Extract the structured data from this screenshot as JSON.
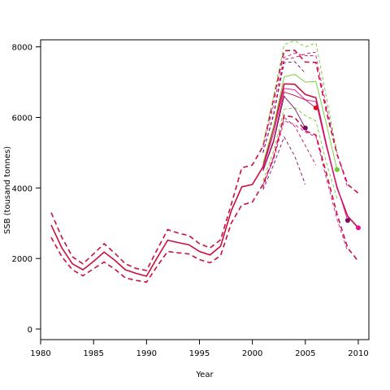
{
  "chart_data": {
    "type": "line",
    "title": "",
    "xlabel": "Year",
    "ylabel": "SSB (tousand tonnes)",
    "xlim": [
      1980,
      2011
    ],
    "ylim": [
      -300,
      8200
    ],
    "x_ticks": [
      1980,
      1985,
      1990,
      1995,
      2000,
      2005,
      2010
    ],
    "y_ticks": [
      0,
      2000,
      4000,
      6000,
      8000
    ],
    "x_tick_labels": [
      "1980",
      "1985",
      "1990",
      "1995",
      "2000",
      "2005",
      "2010"
    ],
    "y_tick_labels": [
      "0",
      "2000",
      "4000",
      "6000",
      "8000"
    ],
    "grid": false,
    "colors": {
      "main": "#c8103f",
      "magenta": "#e0119a",
      "purple": "#7a0a6a",
      "green": "#6ccc2e"
    },
    "series": [
      {
        "style": "solid",
        "color": "#c8103f",
        "x": [
          1981,
          1982,
          1983,
          1984,
          1985,
          1986,
          1987,
          1988,
          1989,
          1990,
          1991,
          1992,
          1993,
          1994,
          1995,
          1996,
          1997,
          1998,
          1999,
          2000,
          2001,
          2002,
          2003,
          2004,
          2005,
          2006,
          2007,
          2008,
          2009,
          2010
        ],
        "values": [
          2950,
          2300,
          1850,
          1680,
          1920,
          2180,
          1950,
          1680,
          1580,
          1500,
          2020,
          2520,
          2450,
          2390,
          2200,
          2100,
          2350,
          3350,
          4030,
          4100,
          4600,
          5700,
          6950,
          6940,
          6650,
          6560,
          5200,
          4000,
          3200,
          2870
        ]
      },
      {
        "style": "dashed",
        "color": "#c8103f",
        "x": [
          1981,
          1982,
          1983,
          1984,
          1985,
          1986,
          1987,
          1988,
          1989,
          1990,
          1991,
          1992,
          1993,
          1994,
          1995,
          1996,
          1997,
          1998,
          1999,
          2000,
          2001,
          2002,
          2003,
          2004,
          2005,
          2006,
          2007,
          2008,
          2009,
          2010
        ],
        "values": [
          3300,
          2600,
          2050,
          1850,
          2130,
          2420,
          2150,
          1850,
          1720,
          1660,
          2250,
          2820,
          2720,
          2650,
          2420,
          2300,
          2530,
          3530,
          4570,
          4650,
          5180,
          6530,
          7890,
          7900,
          7570,
          7560,
          6150,
          4950,
          4100,
          3850
        ]
      },
      {
        "style": "dashed",
        "color": "#c8103f",
        "x": [
          1981,
          1982,
          1983,
          1984,
          1985,
          1986,
          1987,
          1988,
          1989,
          1990,
          1991,
          1992,
          1993,
          1994,
          1995,
          1996,
          1997,
          1998,
          1999,
          2000,
          2001,
          2002,
          2003,
          2004,
          2005,
          2006,
          2007,
          2008,
          2009,
          2010
        ],
        "values": [
          2600,
          2050,
          1680,
          1510,
          1710,
          1900,
          1700,
          1450,
          1380,
          1330,
          1780,
          2200,
          2160,
          2130,
          1970,
          1880,
          2080,
          3000,
          3520,
          3600,
          4100,
          4850,
          6060,
          6000,
          5620,
          5500,
          4400,
          3250,
          2300,
          1920
        ]
      },
      {
        "style": "solid",
        "color": "#e0119a",
        "x": [
          2001,
          2002,
          2003,
          2004,
          2005,
          2006,
          2007,
          2008,
          2009
        ],
        "values": [
          4550,
          5550,
          6820,
          6780,
          6500,
          6450,
          5150,
          4050,
          3080
        ]
      },
      {
        "style": "dashed",
        "color": "#e0119a",
        "x": [
          2001,
          2002,
          2003,
          2004,
          2005,
          2006,
          2007,
          2008,
          2009
        ],
        "values": [
          5150,
          6350,
          7700,
          7820,
          7750,
          7750,
          6300,
          5000,
          4000
        ]
      },
      {
        "style": "dashed",
        "color": "#e0119a",
        "x": [
          2001,
          2002,
          2003,
          2004,
          2005,
          2006,
          2007,
          2008,
          2009
        ],
        "values": [
          4100,
          4800,
          5900,
          5800,
          5580,
          5450,
          4250,
          3100,
          2200
        ]
      },
      {
        "style": "solid",
        "color": "#6ccc2e",
        "x": [
          2001,
          2002,
          2003,
          2004,
          2005,
          2006,
          2007,
          2008
        ],
        "values": [
          4700,
          5750,
          7150,
          7220,
          7000,
          7020,
          5800,
          4520
        ]
      },
      {
        "style": "dashed",
        "color": "#6ccc2e",
        "x": [
          2001,
          2002,
          2003,
          2004,
          2005,
          2006,
          2007,
          2008
        ],
        "values": [
          5250,
          6600,
          8060,
          8180,
          8000,
          8110,
          6550,
          5000
        ]
      },
      {
        "style": "dashed",
        "color": "#6ccc2e",
        "x": [
          2001,
          2002,
          2003,
          2004,
          2005,
          2006,
          2007,
          2008
        ],
        "values": [
          4200,
          5050,
          6230,
          6280,
          6050,
          5900,
          4700,
          3700
        ]
      },
      {
        "style": "solid",
        "color": "#c8103f",
        "x": [
          2001,
          2002,
          2003,
          2004,
          2005,
          2006
        ],
        "values": [
          4500,
          5350,
          6720,
          6620,
          6500,
          6270
        ]
      },
      {
        "style": "dashed",
        "color": "#c8103f",
        "x": [
          2001,
          2002,
          2003,
          2004,
          2005,
          2006
        ],
        "values": [
          5000,
          6100,
          7640,
          7700,
          7800,
          7850
        ]
      },
      {
        "style": "dashed",
        "color": "#c8103f",
        "x": [
          2001,
          2002,
          2003,
          2004,
          2005,
          2006
        ],
        "values": [
          4000,
          4900,
          6000,
          5750,
          5200,
          4650
        ]
      },
      {
        "style": "solid",
        "color": "#7a0a6a",
        "x": [
          2001,
          2002,
          2003,
          2004,
          2005
        ],
        "values": [
          4480,
          5300,
          6600,
          6250,
          5700
        ]
      },
      {
        "style": "dashed",
        "color": "#7a0a6a",
        "x": [
          2001,
          2002,
          2003,
          2004,
          2005
        ],
        "values": [
          5000,
          6050,
          7550,
          7580,
          7250
        ]
      },
      {
        "style": "dashed",
        "color": "#7a0a6a",
        "x": [
          2001,
          2002,
          2003,
          2004,
          2005
        ],
        "values": [
          3950,
          4650,
          5450,
          4900,
          4100
        ]
      }
    ],
    "points": [
      {
        "x": 2005,
        "y": 5700,
        "color": "#7a0a6a"
      },
      {
        "x": 2006,
        "y": 6270,
        "color": "#e0111e"
      },
      {
        "x": 2008,
        "y": 4520,
        "color": "#6ccc2e"
      },
      {
        "x": 2009,
        "y": 3080,
        "color": "#7a0a6a"
      },
      {
        "x": 2010,
        "y": 2870,
        "color": "#e0119a"
      }
    ]
  }
}
